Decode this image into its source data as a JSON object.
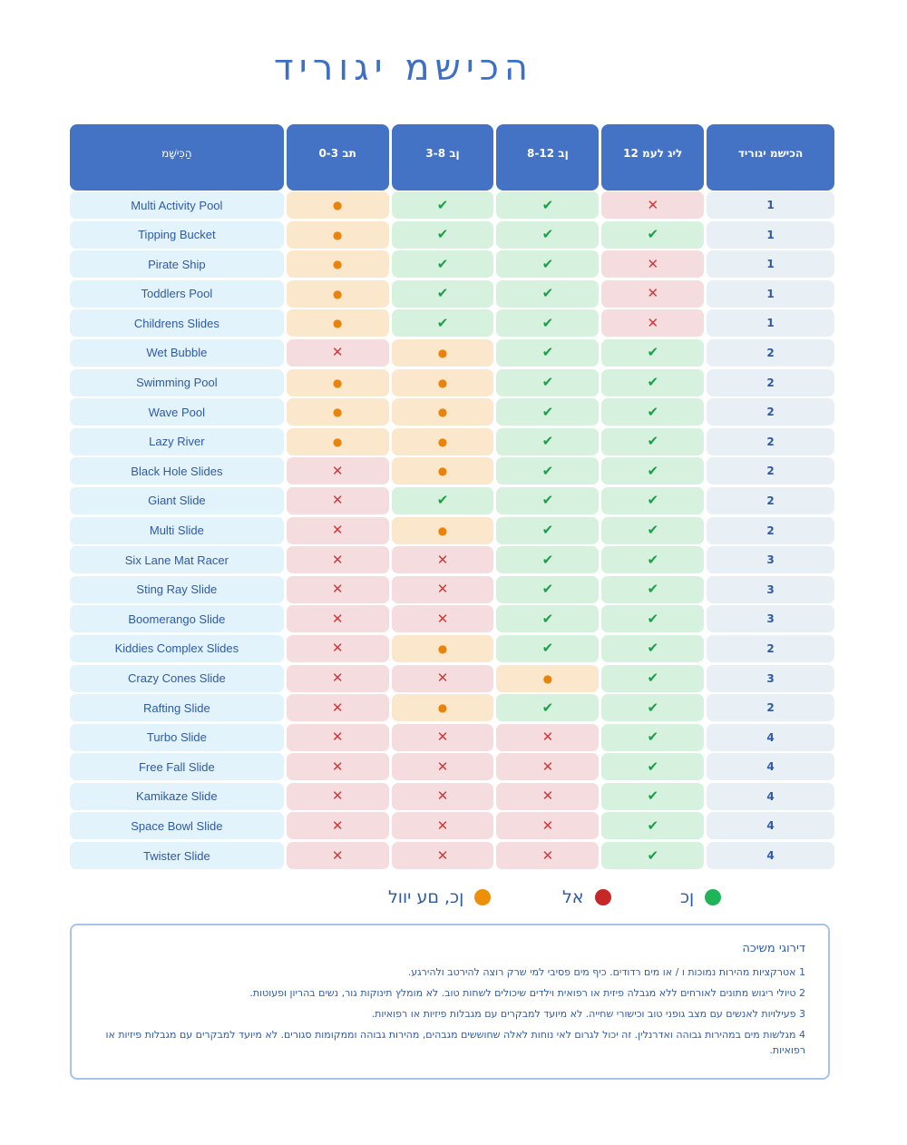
{
  "title": "הכישמ יגוריד",
  "headers": {
    "name": "הַכִּישָׁמ",
    "col_a": "0-3 תב",
    "col_b": "3-8 ןב",
    "col_c": "8-12 ןב",
    "col_d": "12 ליג לעמ",
    "grade": "הכישמ יגוריד"
  },
  "symbols": {
    "yes": "✔",
    "no": "✕",
    "supervised": "●"
  },
  "colors": {
    "header": "#4472c4",
    "yes": "#1f9e4a",
    "no": "#cf3a3a",
    "supervised": "#e8830c",
    "title": "#3d6fc4"
  },
  "rows": [
    {
      "name": "Multi Activity Pool",
      "a": "supervised",
      "b": "yes",
      "c": "yes",
      "d": "no",
      "grade": "1"
    },
    {
      "name": "Tipping Bucket",
      "a": "supervised",
      "b": "yes",
      "c": "yes",
      "d": "yes",
      "grade": "1"
    },
    {
      "name": "Pirate Ship",
      "a": "supervised",
      "b": "yes",
      "c": "yes",
      "d": "no",
      "grade": "1"
    },
    {
      "name": "Toddlers Pool",
      "a": "supervised",
      "b": "yes",
      "c": "yes",
      "d": "no",
      "grade": "1"
    },
    {
      "name": "Childrens Slides",
      "a": "supervised",
      "b": "yes",
      "c": "yes",
      "d": "no",
      "grade": "1"
    },
    {
      "name": "Wet Bubble",
      "a": "no",
      "b": "supervised",
      "c": "yes",
      "d": "yes",
      "grade": "2"
    },
    {
      "name": "Swimming Pool",
      "a": "supervised",
      "b": "supervised",
      "c": "yes",
      "d": "yes",
      "grade": "2"
    },
    {
      "name": "Wave Pool",
      "a": "supervised",
      "b": "supervised",
      "c": "yes",
      "d": "yes",
      "grade": "2"
    },
    {
      "name": "Lazy River",
      "a": "supervised",
      "b": "supervised",
      "c": "yes",
      "d": "yes",
      "grade": "2"
    },
    {
      "name": "Black Hole Slides",
      "a": "no",
      "b": "supervised",
      "c": "yes",
      "d": "yes",
      "grade": "2"
    },
    {
      "name": "Giant Slide",
      "a": "no",
      "b": "yes",
      "c": "yes",
      "d": "yes",
      "grade": "2"
    },
    {
      "name": "Multi Slide",
      "a": "no",
      "b": "supervised",
      "c": "yes",
      "d": "yes",
      "grade": "2"
    },
    {
      "name": "Six Lane Mat Racer",
      "a": "no",
      "b": "no",
      "c": "yes",
      "d": "yes",
      "grade": "3"
    },
    {
      "name": "Sting Ray Slide",
      "a": "no",
      "b": "no",
      "c": "yes",
      "d": "yes",
      "grade": "3"
    },
    {
      "name": "Boomerango Slide",
      "a": "no",
      "b": "no",
      "c": "yes",
      "d": "yes",
      "grade": "3"
    },
    {
      "name": "Kiddies Complex Slides",
      "a": "no",
      "b": "supervised",
      "c": "yes",
      "d": "yes",
      "grade": "2"
    },
    {
      "name": "Crazy Cones Slide",
      "a": "no",
      "b": "no",
      "c": "supervised",
      "d": "yes",
      "grade": "3"
    },
    {
      "name": "Rafting Slide",
      "a": "no",
      "b": "supervised",
      "c": "yes",
      "d": "yes",
      "grade": "2"
    },
    {
      "name": "Turbo Slide",
      "a": "no",
      "b": "no",
      "c": "no",
      "d": "yes",
      "grade": "4"
    },
    {
      "name": "Free Fall Slide",
      "a": "no",
      "b": "no",
      "c": "no",
      "d": "yes",
      "grade": "4"
    },
    {
      "name": "Kamikaze Slide",
      "a": "no",
      "b": "no",
      "c": "no",
      "d": "yes",
      "grade": "4"
    },
    {
      "name": "Space Bowl Slide",
      "a": "no",
      "b": "no",
      "c": "no",
      "d": "yes",
      "grade": "4"
    },
    {
      "name": "Twister Slide",
      "a": "no",
      "b": "no",
      "c": "no",
      "d": "yes",
      "grade": "4"
    }
  ],
  "legend": {
    "yes": "ןכ",
    "no": "אל",
    "supervised": "ןכ, םע יוול"
  },
  "notes": {
    "title": "דירוגי משיכה",
    "items": [
      "1 אטרקציות מהירות נמוכות ו / או מים רדודים. כיף מים פסיבי למי שרק רוצה להירטב ולהירגע.",
      "2 טיולי ריגוש מתונים לאורחים ללא מגבלה פיזית או רפואית וילדים שיכולים לשחות טוב. לא מומלץ תינוקות גור, נשים בהריון ופעוטות.",
      "3 פעילויות לאנשים עם מצב גופני טוב וכישורי שחייה. לא מיועד למבקרים עם מגבלות פיזיות או רפואיות.",
      "4 מגלשות מים במהירות גבוהה ואדרנלין. זה יכול לגרום לאי נוחות לאלה שחוששים מגבהים, מהירות גבוהה וממקומות סגורים. לא מיועד למבקרים עם מגבלות פיזיות או רפואיות."
    ]
  }
}
